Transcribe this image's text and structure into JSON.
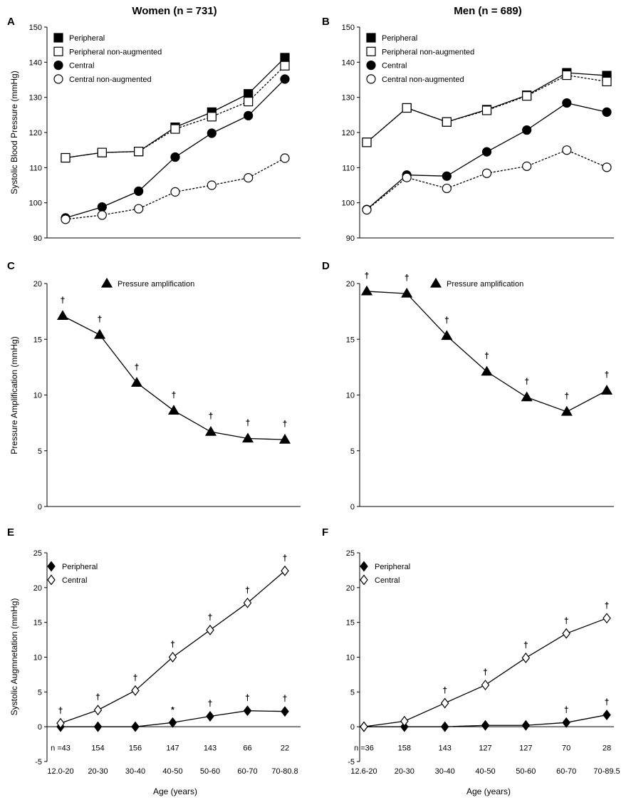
{
  "column_titles": [
    "Women (n = 731)",
    "Men (n = 689)"
  ],
  "xlabel": "Age (years)",
  "chart_data": [
    {
      "id": "A",
      "panel_label": "A",
      "type": "line",
      "ylabel": "Systolic Blood Pressure (mmHg)",
      "ylim": [
        90,
        150
      ],
      "yticks": [
        90,
        100,
        110,
        120,
        130,
        140,
        150
      ],
      "categories": [
        "12.0-20",
        "20-30",
        "30-40",
        "40-50",
        "50-60",
        "60-70",
        "70-80.8"
      ],
      "show_xticks": false,
      "series": [
        {
          "name": "Peripheral",
          "marker": "square",
          "fill": "#000000",
          "dash": false,
          "values": [
            112.8,
            114.3,
            114.6,
            121.5,
            125.8,
            131.0,
            141.3
          ]
        },
        {
          "name": "Peripheral non-augmented",
          "marker": "square",
          "fill": "#ffffff",
          "dash": true,
          "values": [
            112.8,
            114.3,
            114.6,
            121.0,
            124.5,
            128.8,
            139.0
          ]
        },
        {
          "name": "Central",
          "marker": "circle",
          "fill": "#000000",
          "dash": false,
          "values": [
            95.7,
            98.8,
            103.3,
            113.0,
            119.8,
            124.8,
            135.2
          ]
        },
        {
          "name": "Central non-augmented",
          "marker": "circle",
          "fill": "#ffffff",
          "dash": true,
          "values": [
            95.3,
            96.5,
            98.3,
            103.1,
            105.0,
            107.1,
            112.7
          ]
        }
      ]
    },
    {
      "id": "B",
      "panel_label": "B",
      "type": "line",
      "ylabel": "",
      "ylim": [
        90,
        150
      ],
      "yticks": [
        90,
        100,
        110,
        120,
        130,
        140,
        150
      ],
      "categories": [
        "12.6-20",
        "20-30",
        "30-40",
        "40-50",
        "50-60",
        "60-70",
        "70-89.5"
      ],
      "show_xticks": false,
      "series": [
        {
          "name": "Peripheral",
          "marker": "square",
          "fill": "#000000",
          "dash": false,
          "values": [
            117.2,
            127.0,
            123.0,
            126.5,
            130.6,
            137.0,
            136.2
          ]
        },
        {
          "name": "Peripheral non-augmented",
          "marker": "square",
          "fill": "#ffffff",
          "dash": true,
          "values": [
            117.2,
            127.0,
            123.0,
            126.3,
            130.4,
            136.3,
            134.5
          ]
        },
        {
          "name": "Central",
          "marker": "circle",
          "fill": "#000000",
          "dash": false,
          "values": [
            98.1,
            107.9,
            107.6,
            114.5,
            120.7,
            128.4,
            125.8
          ]
        },
        {
          "name": "Central non-augmented",
          "marker": "circle",
          "fill": "#ffffff",
          "dash": true,
          "values": [
            98.0,
            107.2,
            104.1,
            108.4,
            110.4,
            115.0,
            110.1
          ]
        }
      ]
    },
    {
      "id": "C",
      "panel_label": "C",
      "type": "line",
      "ylabel": "Pressure Amplification (mmHg)",
      "ylim": [
        0,
        20
      ],
      "yticks": [
        0,
        5,
        10,
        15,
        20
      ],
      "categories": [
        "12.0-20",
        "20-30",
        "30-40",
        "40-50",
        "50-60",
        "60-70",
        "70-80.8"
      ],
      "show_xticks": false,
      "series": [
        {
          "name": "Pressure amplification",
          "marker": "triangle",
          "fill": "#000000",
          "dash": false,
          "values": [
            17.1,
            15.4,
            11.1,
            8.6,
            6.7,
            6.1,
            6.0
          ],
          "sig": [
            "†",
            "†",
            "†",
            "†",
            "†",
            "†",
            "†"
          ]
        }
      ]
    },
    {
      "id": "D",
      "panel_label": "D",
      "type": "line",
      "ylabel": "",
      "ylim": [
        0,
        20
      ],
      "yticks": [
        0,
        5,
        10,
        15,
        20
      ],
      "categories": [
        "12.6-20",
        "20-30",
        "30-40",
        "40-50",
        "50-60",
        "60-70",
        "70-89.5"
      ],
      "show_xticks": false,
      "series": [
        {
          "name": "Pressure amplification",
          "marker": "triangle",
          "fill": "#000000",
          "dash": false,
          "values": [
            19.3,
            19.1,
            15.3,
            12.1,
            9.8,
            8.5,
            10.4
          ],
          "sig": [
            "†",
            "†",
            "†",
            "†",
            "†",
            "†",
            "†"
          ]
        }
      ]
    },
    {
      "id": "E",
      "panel_label": "E",
      "type": "line",
      "ylabel": "Systolic Augmnetation (mmHg)",
      "ylim": [
        -5,
        25
      ],
      "yticks": [
        -5,
        0,
        5,
        10,
        15,
        20,
        25
      ],
      "categories": [
        "12.0-20",
        "20-30",
        "30-40",
        "40-50",
        "50-60",
        "60-70",
        "70-80.8"
      ],
      "show_xticks": true,
      "n_values": [
        "n =43",
        "154",
        "156",
        "147",
        "143",
        "66",
        "22"
      ],
      "n_y": -3,
      "series": [
        {
          "name": "Peripheral",
          "marker": "diamond",
          "fill": "#000000",
          "dash": false,
          "values": [
            0.0,
            0.0,
            0.0,
            0.6,
            1.5,
            2.3,
            2.2
          ],
          "sig": [
            "",
            "",
            "",
            "*",
            "†",
            "†",
            "†"
          ]
        },
        {
          "name": "Central",
          "marker": "diamond",
          "fill": "#ffffff",
          "dash": false,
          "values": [
            0.5,
            2.4,
            5.2,
            10.0,
            13.9,
            17.8,
            22.4
          ],
          "sig": [
            "†",
            "†",
            "†",
            "†",
            "†",
            "†",
            "†"
          ]
        }
      ]
    },
    {
      "id": "F",
      "panel_label": "F",
      "type": "line",
      "ylabel": "",
      "ylim": [
        -5,
        25
      ],
      "yticks": [
        -5,
        0,
        5,
        10,
        15,
        20,
        25
      ],
      "categories": [
        "12.6-20",
        "20-30",
        "30-40",
        "40-50",
        "50-60",
        "60-70",
        "70-89.5"
      ],
      "show_xticks": true,
      "n_values": [
        "n =36",
        "158",
        "143",
        "127",
        "127",
        "70",
        "28"
      ],
      "n_y": -3,
      "series": [
        {
          "name": "Peripheral",
          "marker": "diamond",
          "fill": "#000000",
          "dash": false,
          "values": [
            0.0,
            0.0,
            0.0,
            0.2,
            0.2,
            0.6,
            1.7
          ],
          "sig": [
            "",
            "",
            "",
            "",
            "",
            "†",
            "†"
          ]
        },
        {
          "name": "Central",
          "marker": "diamond",
          "fill": "#ffffff",
          "dash": false,
          "values": [
            0.0,
            0.8,
            3.4,
            6.0,
            9.9,
            13.4,
            15.6
          ],
          "sig": [
            "",
            "",
            "†",
            "†",
            "†",
            "†",
            "†"
          ]
        }
      ]
    }
  ]
}
